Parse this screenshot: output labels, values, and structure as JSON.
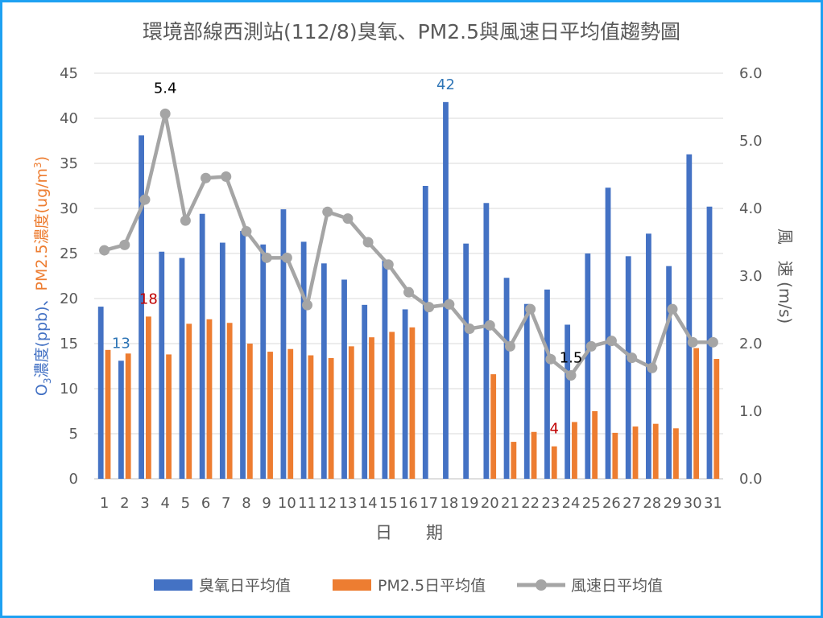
{
  "chart_data": {
    "type": "bar",
    "title": "環境部線西測站(112/8)臭氧、PM2.5與風速日平均值趨勢圖",
    "xlabel": "日　　期",
    "ylabel_left": {
      "o3_prefix": "O",
      "o3_sub": "3",
      "o3_rest": "濃度(ppb)",
      "sep": "、",
      "pm_label": "PM2.5濃度(ug/m",
      "pm_sup": "3",
      "pm_close": ")"
    },
    "ylabel_right": "風　速 (m/s)",
    "ylim_left": [
      0,
      45
    ],
    "ylim_right": [
      0,
      6.0
    ],
    "yticks_left": [
      "0",
      "5",
      "10",
      "15",
      "20",
      "25",
      "30",
      "35",
      "40",
      "45"
    ],
    "yticks_right": [
      "0.0",
      "1.0",
      "2.0",
      "3.0",
      "4.0",
      "5.0",
      "6.0"
    ],
    "categories": [
      "1",
      "2",
      "3",
      "4",
      "5",
      "6",
      "7",
      "8",
      "9",
      "10",
      "11",
      "12",
      "13",
      "14",
      "15",
      "16",
      "17",
      "18",
      "19",
      "20",
      "21",
      "22",
      "23",
      "24",
      "25",
      "26",
      "27",
      "28",
      "29",
      "30",
      "31"
    ],
    "series": [
      {
        "name": "臭氧日平均值",
        "axis": "left",
        "kind": "bar",
        "color": "#4472c4",
        "values": [
          19.1,
          13.1,
          38.1,
          25.2,
          24.5,
          29.4,
          26.2,
          27.5,
          26.0,
          29.9,
          26.3,
          23.9,
          22.1,
          19.3,
          24.2,
          18.8,
          32.5,
          41.8,
          26.1,
          30.6,
          22.3,
          19.4,
          21.0,
          17.1,
          25.0,
          32.3,
          24.7,
          27.2,
          23.6,
          36.0,
          30.2
        ]
      },
      {
        "name": "PM2.5日平均值",
        "axis": "left",
        "kind": "bar",
        "color": "#ed7d31",
        "values": [
          14.3,
          13.9,
          18.0,
          13.8,
          17.2,
          17.7,
          17.3,
          15.0,
          14.1,
          14.4,
          13.7,
          13.4,
          14.7,
          15.7,
          16.3,
          16.8,
          null,
          null,
          null,
          11.6,
          4.1,
          5.2,
          3.6,
          6.3,
          7.5,
          5.1,
          5.8,
          6.1,
          5.6,
          14.5,
          13.3
        ]
      },
      {
        "name": "風速日平均值",
        "axis": "right",
        "kind": "line",
        "color": "#a5a5a5",
        "values": [
          3.38,
          3.46,
          4.13,
          5.4,
          3.82,
          4.45,
          4.47,
          3.66,
          3.27,
          3.27,
          2.57,
          3.95,
          3.85,
          3.5,
          3.17,
          2.76,
          2.54,
          2.58,
          2.22,
          2.27,
          1.96,
          2.51,
          1.77,
          1.53,
          1.96,
          2.04,
          1.79,
          1.64,
          2.51,
          2.02,
          2.02
        ]
      }
    ],
    "annotations": [
      {
        "text": "13",
        "series": 0,
        "index": 1,
        "color": "#2e75b6"
      },
      {
        "text": "42",
        "series": 0,
        "index": 17,
        "color": "#2e75b6"
      },
      {
        "text": "18",
        "series": 1,
        "index": 2,
        "color": "#c00000"
      },
      {
        "text": "4",
        "series": 1,
        "index": 22,
        "color": "#c00000"
      },
      {
        "text": "5.4",
        "series": 2,
        "index": 3,
        "color": "#000000"
      },
      {
        "text": "1.5",
        "series": 2,
        "index": 23,
        "color": "#000000"
      }
    ],
    "grid": true,
    "legend": "bottom"
  }
}
